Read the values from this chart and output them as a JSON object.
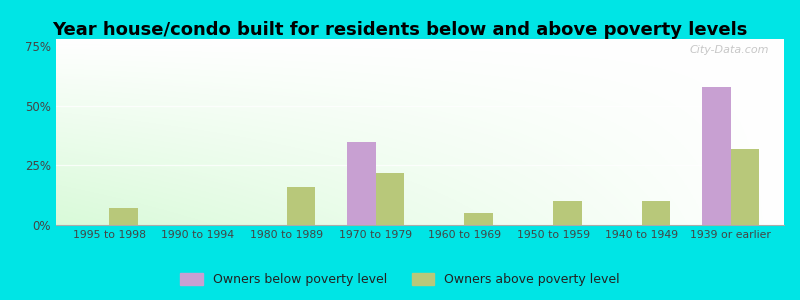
{
  "title": "Year house/condo built for residents below and above poverty levels",
  "categories": [
    "1995 to 1998",
    "1990 to 1994",
    "1980 to 1989",
    "1970 to 1979",
    "1960 to 1969",
    "1950 to 1959",
    "1940 to 1949",
    "1939 or earlier"
  ],
  "below_poverty": [
    0,
    0,
    0,
    35,
    0,
    0,
    0,
    58
  ],
  "above_poverty": [
    7,
    0,
    16,
    22,
    5,
    10,
    10,
    32
  ],
  "below_color": "#c8a0d2",
  "above_color": "#b8c87a",
  "ylabel_ticks": [
    0,
    25,
    50,
    75
  ],
  "ylabel_labels": [
    "0%",
    "25%",
    "50%",
    "75%"
  ],
  "ylim": [
    0,
    78
  ],
  "background_outer": "#00e5e5",
  "legend_below": "Owners below poverty level",
  "legend_above": "Owners above poverty level",
  "title_fontsize": 13,
  "watermark": "City-Data.com",
  "bar_width": 0.32
}
